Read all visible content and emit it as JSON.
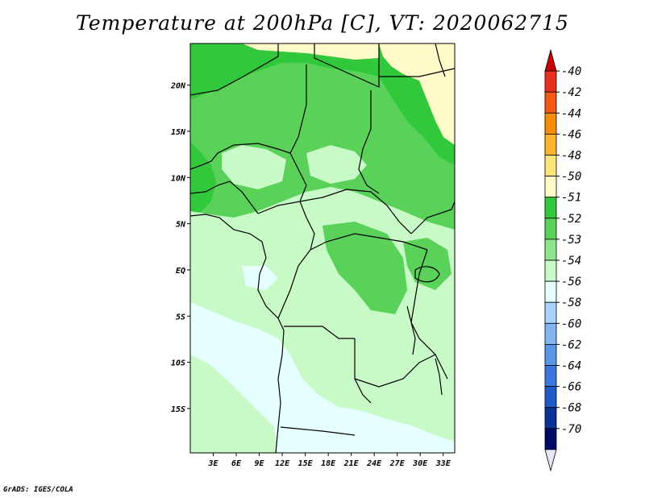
{
  "title": "Temperature at 200hPa [C], VT: 2020062715",
  "credit": "GrADS: IGES/COLA",
  "map": {
    "lon_range": [
      0,
      34.5
    ],
    "lat_range": [
      -19.8,
      24.5
    ],
    "x_ticks": [
      "3E",
      "6E",
      "9E",
      "12E",
      "15E",
      "18E",
      "21E",
      "24E",
      "27E",
      "30E",
      "33E"
    ],
    "x_tick_values": [
      3,
      6,
      9,
      12,
      15,
      18,
      21,
      24,
      27,
      30,
      33
    ],
    "y_ticks": [
      "20N",
      "15N",
      "10N",
      "5N",
      "EQ",
      "5S",
      "10S",
      "15S"
    ],
    "y_tick_values": [
      20,
      15,
      10,
      5,
      0,
      -5,
      -10,
      -15
    ]
  },
  "legend": {
    "labels": [
      "-40",
      "-42",
      "-44",
      "-46",
      "-48",
      "-50",
      "-51",
      "-52",
      "-53",
      "-54",
      "-56",
      "-58",
      "-60",
      "-62",
      "-64",
      "-66",
      "-68",
      "-70"
    ],
    "colors": [
      "#cc0000",
      "#e8321e",
      "#f05a14",
      "#f58c0a",
      "#fab432",
      "#fae678",
      "#fffac8",
      "#32c83c",
      "#5ad25a",
      "#8ce68c",
      "#c8fac8",
      "#e6ffff",
      "#aad2fa",
      "#82b4f0",
      "#5a96e6",
      "#3c78dc",
      "#1e5ac8",
      "#0a3296",
      "#000a64",
      "#e6e6fa"
    ]
  },
  "regions": {
    "colors": {
      "pale_yellow": "#fffac8",
      "dark_green": "#32c83c",
      "medium_green": "#5ad25a",
      "light_green": "#8ce68c",
      "pale_green": "#c8fac8",
      "pale_cyan": "#e6ffff"
    }
  }
}
